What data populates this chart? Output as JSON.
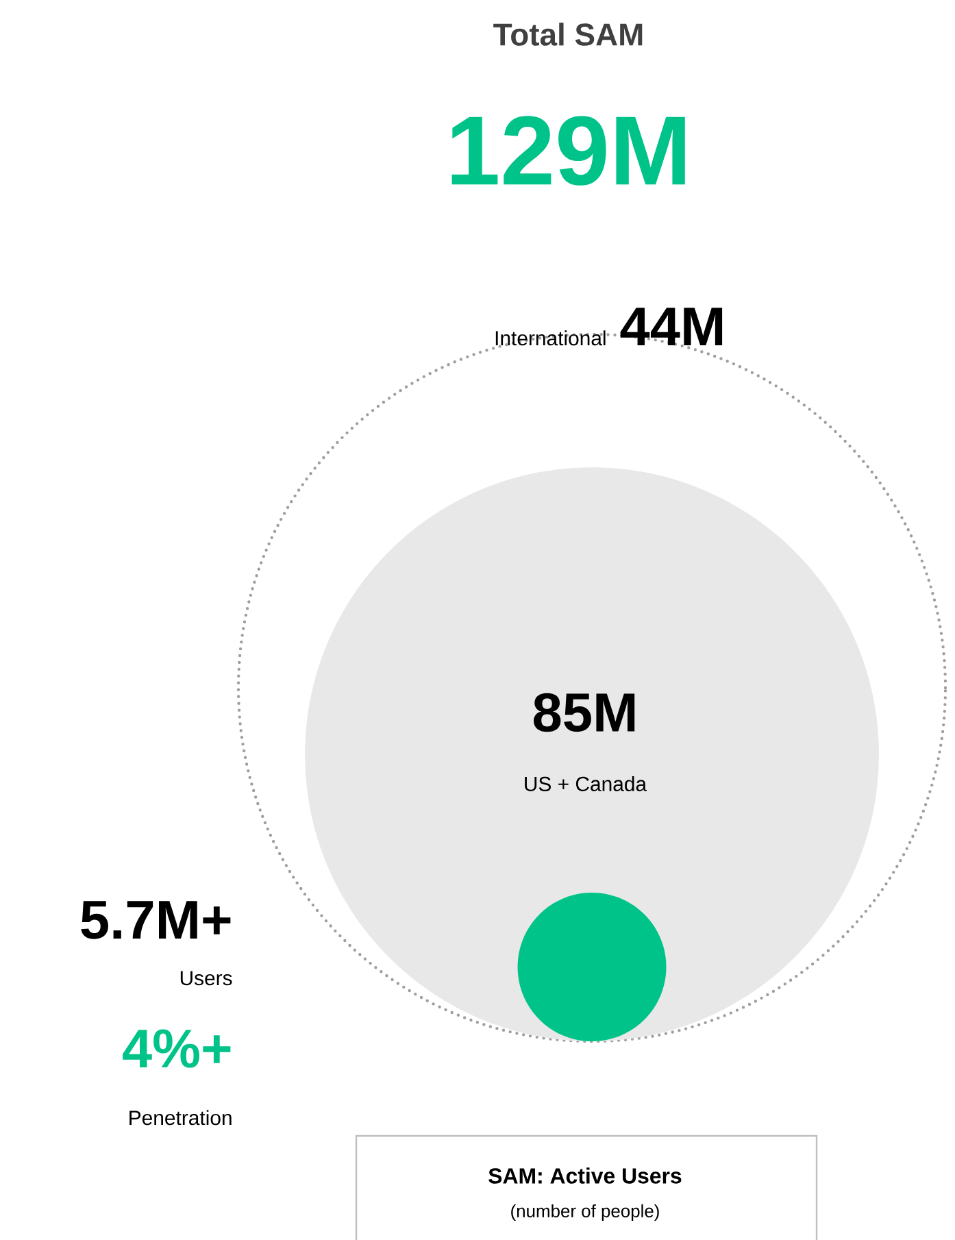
{
  "chart_data": {
    "type": "other",
    "title": "Total SAM",
    "subtitle": "129M",
    "categories": [
      "International",
      "US + Canada",
      "Users"
    ],
    "values": [
      44,
      85,
      5.7
    ],
    "value_labels": [
      "44M",
      "85M",
      "5.7M+"
    ],
    "colors": [
      "#9e9e9e",
      "#e8e8e8",
      "#00c389"
    ],
    "annotations": [
      "4%+",
      "Penetration",
      "SAM: Active Users",
      "(number of people)"
    ]
  }
}
